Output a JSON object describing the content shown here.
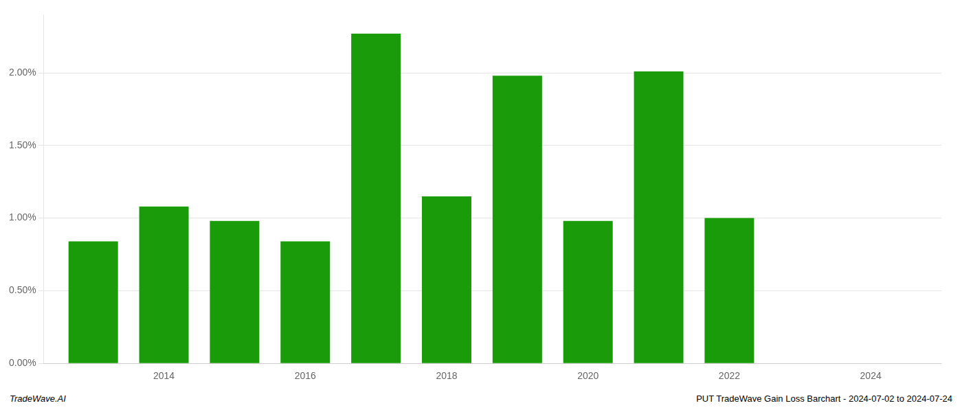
{
  "chart_data": {
    "type": "bar",
    "x": [
      2013,
      2014,
      2015,
      2016,
      2017,
      2018,
      2019,
      2020,
      2021,
      2022
    ],
    "values": [
      0.0084,
      0.0108,
      0.0098,
      0.0084,
      0.0227,
      0.0115,
      0.0198,
      0.0098,
      0.0201,
      0.01
    ],
    "color": "#1a9c0a",
    "xlim": [
      2012.3,
      2025.0
    ],
    "xticks": [
      2014,
      2016,
      2018,
      2020,
      2022,
      2024
    ],
    "ylim": [
      0.0,
      0.024
    ],
    "yticks": [
      {
        "value": 0.0,
        "label": "0.00%"
      },
      {
        "value": 0.005,
        "label": "0.50%"
      },
      {
        "value": 0.01,
        "label": "1.00%"
      },
      {
        "value": 0.015,
        "label": "1.50%"
      },
      {
        "value": 0.02,
        "label": "2.00%"
      }
    ],
    "grid": "y",
    "annotations": [
      "TradeWave.AI",
      "PUT TradeWave Gain Loss Barchart - 2024-07-02 to 2024-07-24"
    ]
  }
}
